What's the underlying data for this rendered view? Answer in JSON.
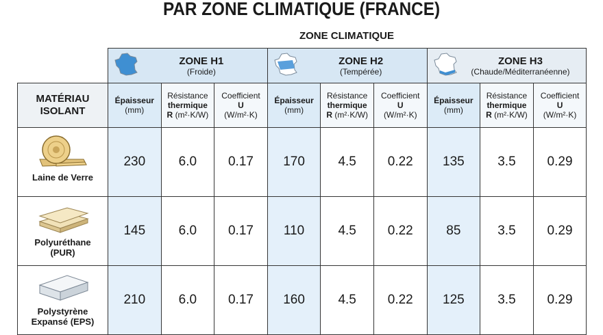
{
  "header": {
    "title": "PAR ZONE CLIMATIQUE (FRANCE)",
    "group_label": "ZONE CLIMATIQUE"
  },
  "table": {
    "corner": [
      "MATÉRIAU",
      "ISOLANT"
    ],
    "zones": [
      {
        "name": "ZONE H1",
        "climate": "(Froide)"
      },
      {
        "name": "ZONE H2",
        "climate": "(Tempérée)"
      },
      {
        "name": "ZONE H3",
        "climate": "(Chaude/Méditerranéenne)"
      }
    ],
    "columns": [
      {
        "name": "Épaisseur",
        "unit": "(mm)"
      },
      {
        "name": "Résistance",
        "subname": "thermique",
        "symbol": "R",
        "unit": "(m²·K/W)"
      },
      {
        "name": "Coefficient",
        "symbol": "U",
        "unit": "(W/m²·K)"
      }
    ],
    "rows": [
      {
        "material": [
          "Laine de Verre"
        ],
        "values": [
          "230",
          "6.0",
          "0.17",
          "170",
          "4.5",
          "0.22",
          "135",
          "3.5",
          "0.29"
        ]
      },
      {
        "material": [
          "Polyuréthane",
          "(PUR)"
        ],
        "values": [
          "145",
          "6.0",
          "0.17",
          "110",
          "4.5",
          "0.22",
          "85",
          "3.5",
          "0.29"
        ]
      },
      {
        "material": [
          "Polystyrène",
          "Expansé (EPS)"
        ],
        "values": [
          "210",
          "6.0",
          "0.17",
          "160",
          "4.5",
          "0.22",
          "125",
          "3.5",
          "0.29"
        ]
      }
    ]
  }
}
